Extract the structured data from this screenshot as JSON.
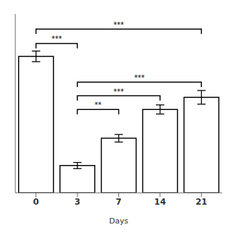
{
  "chart_data": {
    "type": "bar",
    "categories": [
      "0",
      "3",
      "7",
      "14",
      "21"
    ],
    "values": [
      90,
      18,
      36,
      55,
      63
    ],
    "errors": [
      3.5,
      2.0,
      2.5,
      3.0,
      4.5
    ],
    "color": "white",
    "xlabel": "Days",
    "ylim": [
      0,
      118
    ],
    "yticks": [],
    "tick_labels": "x",
    "grid": false,
    "annotations": [
      {
        "text": "***",
        "from": "0",
        "to": "3",
        "y": 98.5
      },
      {
        "text": "**",
        "from": "3",
        "to": "7",
        "y": 55
      },
      {
        "text": "***",
        "from": "3",
        "to": "14",
        "y": 64
      },
      {
        "text": "***",
        "from": "3",
        "to": "21",
        "y": 73
      },
      {
        "text": "***",
        "from": "0",
        "to": "21",
        "y": 108
      }
    ]
  }
}
